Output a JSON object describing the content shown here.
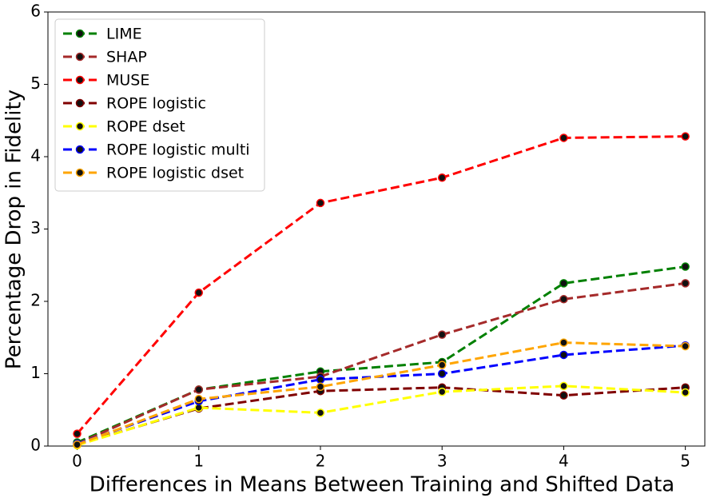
{
  "chart_data": {
    "type": "line",
    "xlabel": "Differences in Means Between Training and Shifted Data",
    "ylabel": "Percentage Drop in Fidelity",
    "x": [
      0,
      1,
      2,
      3,
      4,
      5
    ],
    "series": [
      {
        "name": "LIME",
        "color": "#008000",
        "values": [
          0.05,
          0.78,
          1.03,
          1.16,
          2.25,
          2.48
        ]
      },
      {
        "name": "SHAP",
        "color": "#a52a2a",
        "values": [
          0.03,
          0.78,
          0.96,
          1.54,
          2.03,
          2.25
        ]
      },
      {
        "name": "MUSE",
        "color": "#ff0000",
        "values": [
          0.17,
          2.12,
          3.36,
          3.71,
          4.26,
          4.28
        ]
      },
      {
        "name": "ROPE logistic",
        "color": "#800000",
        "values": [
          0.02,
          0.52,
          0.76,
          0.81,
          0.7,
          0.81
        ]
      },
      {
        "name": "ROPE dset",
        "color": "#ffff00",
        "values": [
          0.01,
          0.53,
          0.46,
          0.75,
          0.83,
          0.74
        ]
      },
      {
        "name": "ROPE logistic multi",
        "color": "#0000ff",
        "values": [
          0.03,
          0.62,
          0.92,
          1.0,
          1.26,
          1.39
        ]
      },
      {
        "name": "ROPE logistic dset",
        "color": "#ffa500",
        "values": [
          0.02,
          0.65,
          0.82,
          1.12,
          1.43,
          1.38
        ]
      }
    ],
    "xlim": [
      -0.24,
      5.16
    ],
    "xticks": [
      0,
      1,
      2,
      3,
      4,
      5
    ],
    "ylim": [
      0,
      6
    ],
    "yticks": [
      0,
      1,
      2,
      3,
      4,
      5,
      6
    ],
    "legend": "upper left",
    "grid": false
  }
}
